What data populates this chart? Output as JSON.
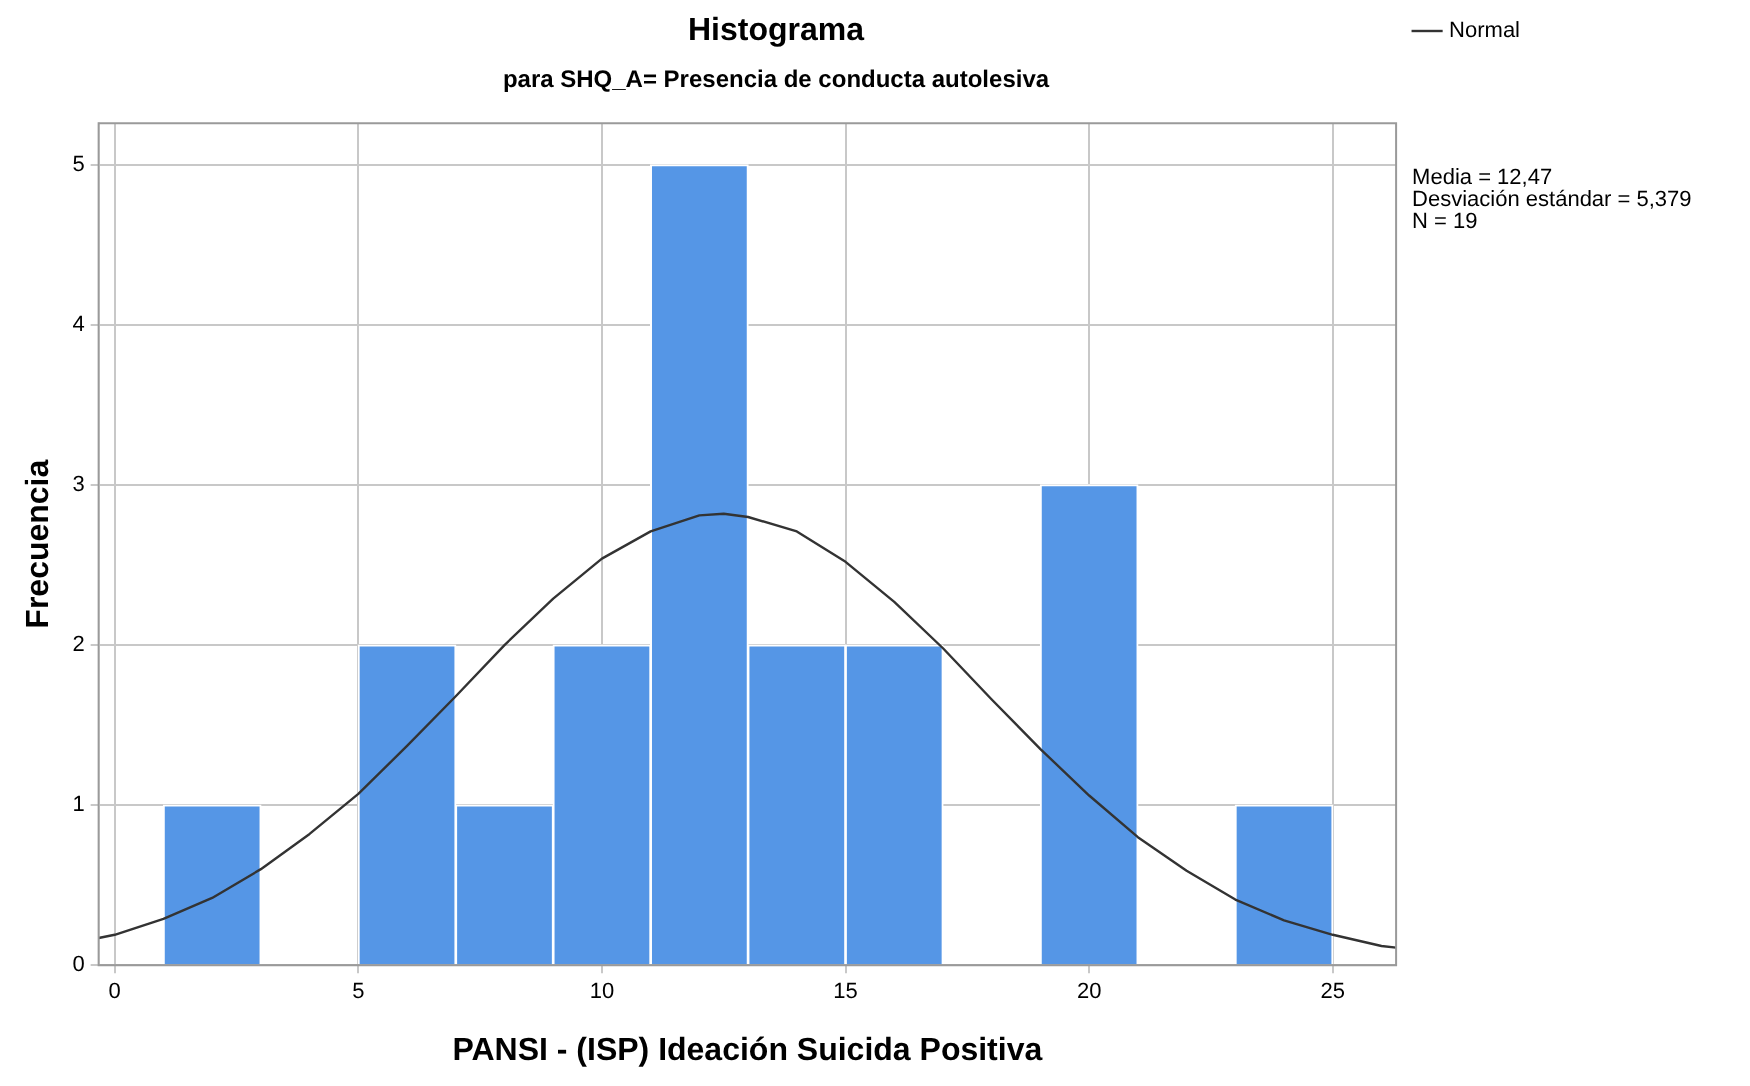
{
  "chart_data": {
    "type": "histogram",
    "title": "Histograma",
    "subtitle": "para SHQ_A= Presencia de conducta autolesiva",
    "xlabel": "PANSI - (ISP) Ideación Suicida Positiva",
    "ylabel": "Frecuencia",
    "annotations": [
      "Media = 12,47",
      "Desviación estándar = 5,379",
      "N = 19"
    ],
    "xlim": [
      -0.33,
      26.3
    ],
    "xticks": [
      0,
      5,
      10,
      15,
      20,
      25
    ],
    "ylim": [
      0,
      5.26
    ],
    "yticks": [
      0,
      1,
      2,
      3,
      4,
      5
    ],
    "grid": true,
    "legend": "top right",
    "marker": "none",
    "series": [
      {
        "color": "#5596e6",
        "bins": [
          1,
          3,
          5,
          7,
          9,
          11,
          13,
          15,
          17,
          19,
          21,
          23,
          25
        ],
        "values": [
          1,
          0,
          2,
          1,
          2,
          5,
          2,
          2,
          0,
          3,
          0,
          1
        ]
      },
      {
        "type": "line",
        "name": "Normal",
        "color": "#333333",
        "line_style": "solid",
        "x": [
          -0.33,
          0,
          1,
          2,
          3,
          4,
          5,
          6,
          7,
          8,
          9,
          10,
          11,
          12,
          12.5,
          13,
          14,
          15,
          16,
          17,
          18,
          19,
          20,
          21,
          22,
          23,
          24,
          25,
          26,
          26.3
        ],
        "values": [
          0.17,
          0.19,
          0.29,
          0.42,
          0.6,
          0.82,
          1.07,
          1.37,
          1.68,
          2.0,
          2.29,
          2.54,
          2.71,
          2.81,
          2.82,
          2.8,
          2.71,
          2.52,
          2.27,
          1.98,
          1.66,
          1.35,
          1.06,
          0.8,
          0.59,
          0.41,
          0.28,
          0.19,
          0.12,
          0.11
        ]
      }
    ]
  }
}
